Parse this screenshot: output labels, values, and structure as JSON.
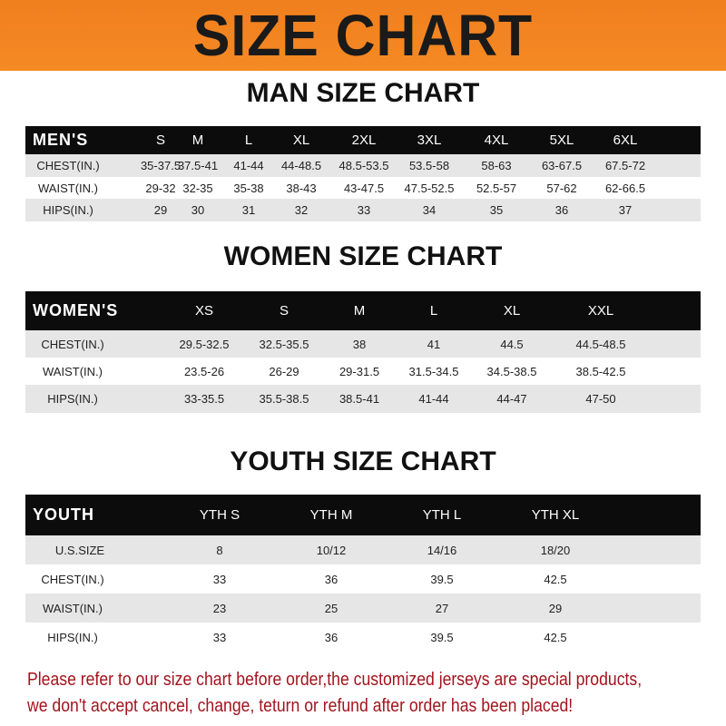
{
  "banner": "SIZE CHART",
  "men": {
    "title": "MAN SIZE CHART",
    "header": [
      "MEN'S",
      "S",
      "M",
      "L",
      "XL",
      "2XL",
      "3XL",
      "4XL",
      "5XL",
      "6XL"
    ],
    "rows": [
      [
        "CHEST(IN.)",
        "35-37.5",
        "37.5-41",
        "41-44",
        "44-48.5",
        "48.5-53.5",
        "53.5-58",
        "58-63",
        "63-67.5",
        "67.5-72"
      ],
      [
        "WAIST(IN.)",
        "29-32",
        "32-35",
        "35-38",
        "38-43",
        "43-47.5",
        "47.5-52.5",
        "52.5-57",
        "57-62",
        "62-66.5"
      ],
      [
        "HIPS(IN.)",
        "29",
        "30",
        "31",
        "32",
        "33",
        "34",
        "35",
        "36",
        "37"
      ]
    ]
  },
  "women": {
    "title": "WOMEN SIZE CHART",
    "header": [
      "WOMEN'S",
      "XS",
      "S",
      "M",
      "L",
      "XL",
      "XXL"
    ],
    "rows": [
      [
        "CHEST(IN.)",
        "29.5-32.5",
        "32.5-35.5",
        "38",
        "41",
        "44.5",
        "44.5-48.5"
      ],
      [
        "WAIST(IN.)",
        "23.5-26",
        "26-29",
        "29-31.5",
        "31.5-34.5",
        "34.5-38.5",
        "38.5-42.5"
      ],
      [
        "HIPS(IN.)",
        "33-35.5",
        "35.5-38.5",
        "38.5-41",
        "41-44",
        "44-47",
        "47-50"
      ]
    ]
  },
  "youth": {
    "title": "YOUTH SIZE CHART",
    "header": [
      "YOUTH",
      "YTH S",
      "YTH M",
      "YTH L",
      "YTH XL"
    ],
    "rows": [
      [
        "U.S.SIZE",
        "8",
        "10/12",
        "14/16",
        "18/20"
      ],
      [
        "CHEST(IN.)",
        "33",
        "36",
        "39.5",
        "42.5"
      ],
      [
        "WAIST(IN.)",
        "23",
        "25",
        "27",
        "29"
      ],
      [
        "HIPS(IN.)",
        "33",
        "36",
        "39.5",
        "42.5"
      ]
    ]
  },
  "note_line1": "Please refer to our size chart before order,the customized jerseys are special products,",
  "note_line2": "we don't accept cancel, change, teturn or refund after order has been placed!",
  "colors": {
    "banner": "#f58a24",
    "header_row": "#0c0c0c",
    "note": "#a3131d",
    "stripe": "#e6e6e6"
  }
}
